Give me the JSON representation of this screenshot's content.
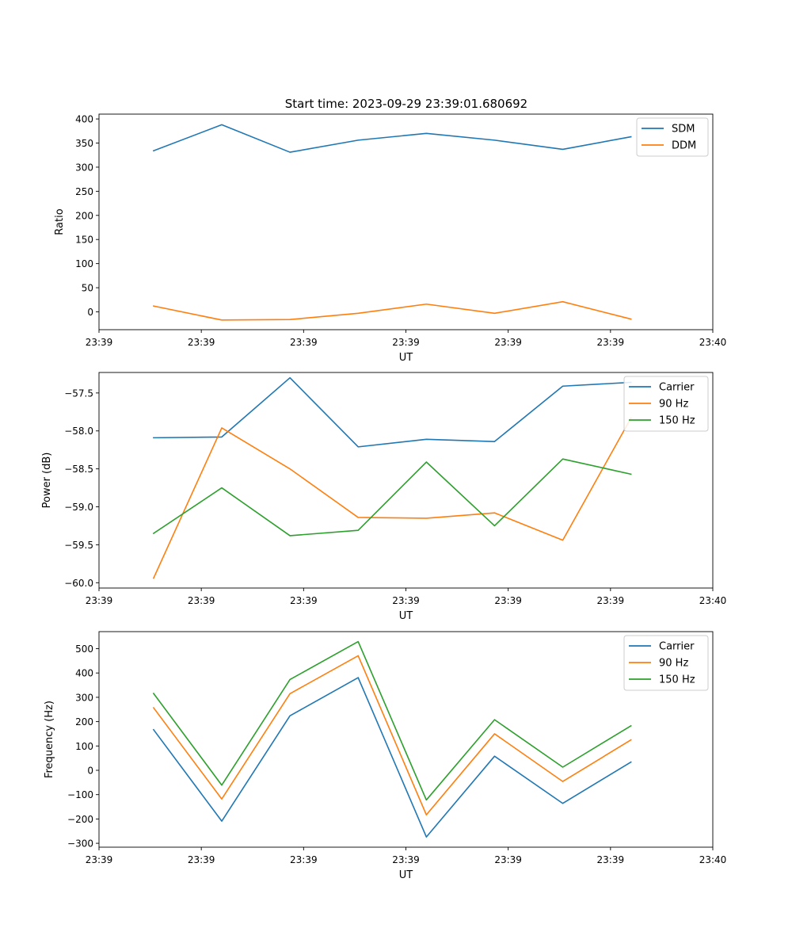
{
  "figure_title": "Start time: 2023-09-29 23:39:01.680692",
  "colors": {
    "blue": "#1f77b4",
    "orange": "#ff7f0e",
    "green": "#2ca02c"
  },
  "chart_data": [
    {
      "type": "line",
      "title": "Start time: 2023-09-29 23:39:01.680692",
      "xlabel": "UT",
      "ylabel": "Ratio",
      "x": [
        1,
        2,
        3,
        4,
        5,
        6,
        7,
        8
      ],
      "xlim": [
        0.2,
        9.2
      ],
      "x_ticks": [
        0.2,
        1.7,
        3.2,
        4.7,
        6.2,
        7.7,
        9.2
      ],
      "x_tick_labels": [
        "23:39",
        "23:39",
        "23:39",
        "23:39",
        "23:39",
        "23:39",
        "23:40"
      ],
      "ylim": [
        -37,
        410
      ],
      "y_ticks": [
        0,
        50,
        100,
        150,
        200,
        250,
        300,
        350,
        400
      ],
      "y_tick_labels": [
        "0",
        "50",
        "100",
        "150",
        "200",
        "250",
        "300",
        "350",
        "400"
      ],
      "legend_position": "top-right",
      "series": [
        {
          "name": "SDM",
          "color": "#1f77b4",
          "values": [
            334,
            388,
            331,
            356,
            370,
            356,
            337,
            363
          ]
        },
        {
          "name": "DDM",
          "color": "#ff7f0e",
          "values": [
            12,
            -17,
            -16,
            -3,
            16,
            -3,
            21,
            -15
          ]
        }
      ]
    },
    {
      "type": "line",
      "title": "",
      "xlabel": "UT",
      "ylabel": "Power (dB)",
      "x": [
        1,
        2,
        3,
        4,
        5,
        6,
        7,
        8
      ],
      "xlim": [
        0.2,
        9.2
      ],
      "x_ticks": [
        0.2,
        1.7,
        3.2,
        4.7,
        6.2,
        7.7,
        9.2
      ],
      "x_tick_labels": [
        "23:39",
        "23:39",
        "23:39",
        "23:39",
        "23:39",
        "23:39",
        "23:40"
      ],
      "ylim": [
        -60.07,
        -57.23
      ],
      "y_ticks": [
        -60.0,
        -59.5,
        -59.0,
        -58.5,
        -58.0,
        -57.5
      ],
      "y_tick_labels": [
        "−60.0",
        "−59.5",
        "−59.0",
        "−58.5",
        "−58.0",
        "−57.5"
      ],
      "legend_position": "top-right",
      "series": [
        {
          "name": "Carrier",
          "color": "#1f77b4",
          "values": [
            -58.09,
            -58.08,
            -57.3,
            -58.21,
            -58.11,
            -58.14,
            -57.41,
            -57.36
          ]
        },
        {
          "name": "90 Hz",
          "color": "#ff7f0e",
          "values": [
            -59.94,
            -57.96,
            -58.5,
            -59.14,
            -59.15,
            -59.08,
            -59.44,
            -57.83
          ]
        },
        {
          "name": "150 Hz",
          "color": "#2ca02c",
          "values": [
            -59.35,
            -58.75,
            -59.38,
            -59.31,
            -58.41,
            -59.25,
            -58.37,
            -58.57
          ]
        }
      ]
    },
    {
      "type": "line",
      "title": "",
      "xlabel": "UT",
      "ylabel": "Frequency (Hz)",
      "x": [
        1,
        2,
        3,
        4,
        5,
        6,
        7,
        8
      ],
      "xlim": [
        0.2,
        9.2
      ],
      "x_ticks": [
        0.2,
        1.7,
        3.2,
        4.7,
        6.2,
        7.7,
        9.2
      ],
      "x_tick_labels": [
        "23:39",
        "23:39",
        "23:39",
        "23:39",
        "23:39",
        "23:39",
        "23:40"
      ],
      "ylim": [
        -316,
        570
      ],
      "y_ticks": [
        -300,
        -200,
        -100,
        0,
        100,
        200,
        300,
        400,
        500
      ],
      "y_tick_labels": [
        "−300",
        "−200",
        "−100",
        "0",
        "100",
        "200",
        "300",
        "400",
        "500"
      ],
      "legend_position": "top-right",
      "series": [
        {
          "name": "Carrier",
          "color": "#1f77b4",
          "values": [
            167,
            -209,
            224,
            381,
            -274,
            58,
            -136,
            34
          ]
        },
        {
          "name": "90 Hz",
          "color": "#ff7f0e",
          "values": [
            257,
            -118,
            315,
            471,
            -183,
            150,
            -46,
            125
          ]
        },
        {
          "name": "150 Hz",
          "color": "#2ca02c",
          "values": [
            316,
            -61,
            373,
            529,
            -122,
            208,
            13,
            183
          ]
        }
      ]
    }
  ]
}
